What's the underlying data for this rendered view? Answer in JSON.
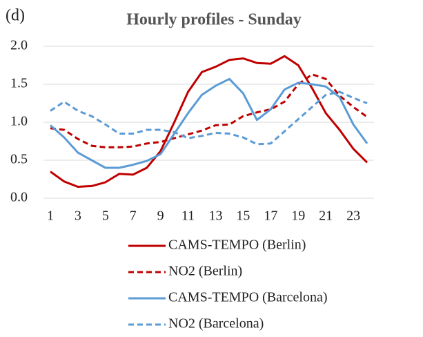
{
  "chart_data": {
    "type": "line",
    "panel_label": "(d)",
    "title": "Hourly profiles - Sunday",
    "x": [
      1,
      2,
      3,
      4,
      5,
      6,
      7,
      8,
      9,
      10,
      11,
      12,
      13,
      14,
      15,
      16,
      17,
      18,
      19,
      20,
      21,
      22,
      23,
      24
    ],
    "xlim": [
      0.5,
      24.5
    ],
    "xticks": [
      1,
      3,
      5,
      7,
      9,
      11,
      13,
      15,
      17,
      19,
      21,
      23
    ],
    "ylim": [
      0,
      2
    ],
    "yticks": [
      {
        "value": 0,
        "label": "0.0"
      },
      {
        "value": 0.5,
        "label": "0.5"
      },
      {
        "value": 1,
        "label": "1.0"
      },
      {
        "value": 1.5,
        "label": "1.5"
      },
      {
        "value": 2,
        "label": "2.0"
      }
    ],
    "grid": true,
    "series": [
      {
        "name": "CAMS-TEMPO (Berlin)",
        "color": "#c00000",
        "dash": false,
        "values": [
          0.35,
          0.22,
          0.15,
          0.16,
          0.21,
          0.32,
          0.31,
          0.4,
          0.62,
          1.0,
          1.4,
          1.66,
          1.73,
          1.82,
          1.84,
          1.78,
          1.77,
          1.87,
          1.75,
          1.45,
          1.12,
          0.9,
          0.65,
          0.47
        ]
      },
      {
        "name": "NO2 (Berlin)",
        "color": "#c00000",
        "dash": true,
        "values": [
          0.92,
          0.9,
          0.78,
          0.69,
          0.67,
          0.67,
          0.68,
          0.72,
          0.74,
          0.79,
          0.84,
          0.89,
          0.96,
          0.97,
          1.08,
          1.13,
          1.17,
          1.27,
          1.5,
          1.63,
          1.57,
          1.35,
          1.2,
          1.07
        ]
      },
      {
        "name": "CAMS-TEMPO (Barcelona)",
        "color": "#5b9bd5",
        "dash": false,
        "values": [
          0.96,
          0.8,
          0.6,
          0.5,
          0.4,
          0.4,
          0.44,
          0.49,
          0.58,
          0.85,
          1.12,
          1.36,
          1.48,
          1.57,
          1.38,
          1.03,
          1.17,
          1.43,
          1.52,
          1.5,
          1.47,
          1.33,
          0.97,
          0.72
        ]
      },
      {
        "name": "NO2 (Barcelona)",
        "color": "#5b9bd5",
        "dash": true,
        "values": [
          1.15,
          1.27,
          1.15,
          1.08,
          0.97,
          0.85,
          0.85,
          0.9,
          0.9,
          0.87,
          0.79,
          0.82,
          0.86,
          0.85,
          0.8,
          0.71,
          0.72,
          0.88,
          1.04,
          1.2,
          1.36,
          1.4,
          1.32,
          1.25
        ]
      }
    ]
  }
}
